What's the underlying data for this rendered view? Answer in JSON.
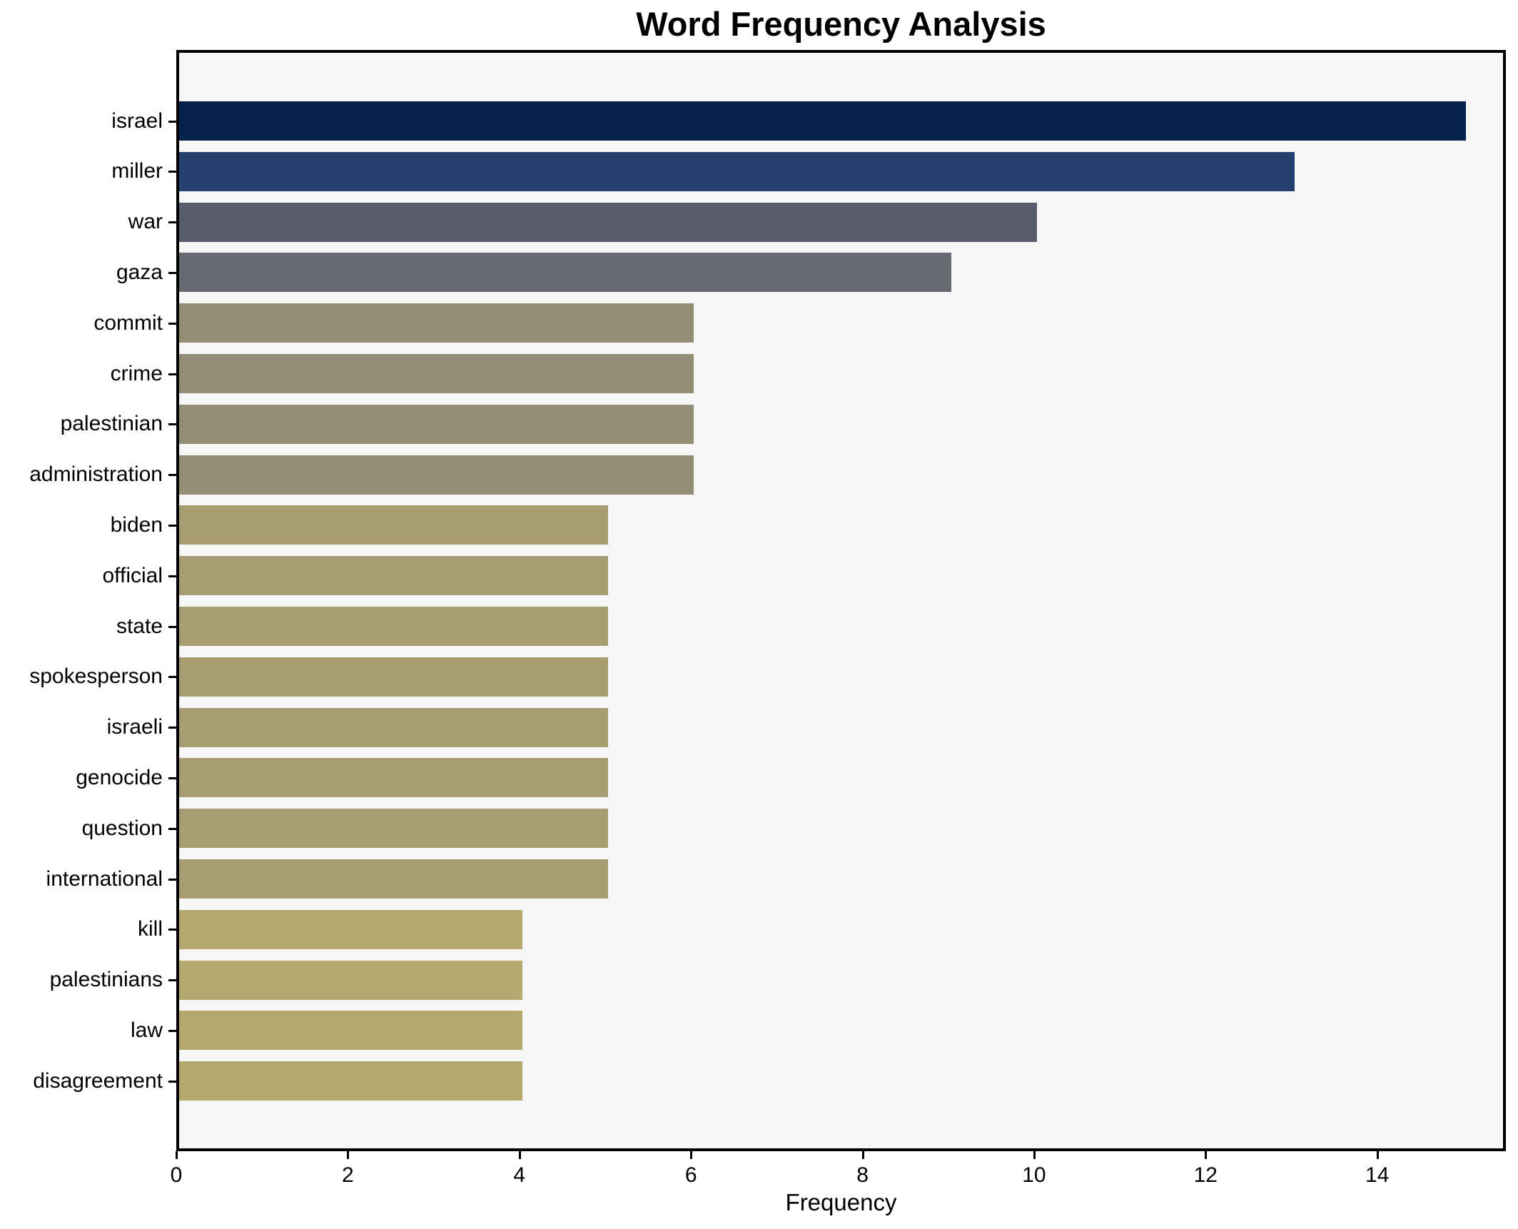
{
  "chart_data": {
    "type": "bar",
    "orientation": "horizontal",
    "title": "Word Frequency Analysis",
    "xlabel": "Frequency",
    "ylabel": "",
    "categories": [
      "israel",
      "miller",
      "war",
      "gaza",
      "commit",
      "crime",
      "palestinian",
      "administration",
      "biden",
      "official",
      "state",
      "spokesperson",
      "israeli",
      "genocide",
      "question",
      "international",
      "kill",
      "palestinians",
      "law",
      "disagreement"
    ],
    "values": [
      15,
      13,
      10,
      9,
      6,
      6,
      6,
      6,
      5,
      5,
      5,
      5,
      5,
      5,
      5,
      5,
      4,
      4,
      4,
      4
    ],
    "bar_colors": [
      "#05224c",
      "#23406e",
      "#575d6d",
      "#676a71",
      "#948e76",
      "#948e76",
      "#948e76",
      "#948e76",
      "#a69d72",
      "#a69d72",
      "#a69d72",
      "#a69d72",
      "#a69d72",
      "#a69d72",
      "#a69d72",
      "#a69d72",
      "#b5a96e",
      "#b5a96e",
      "#b5a96e",
      "#b5a96e"
    ],
    "xlim": [
      0,
      15.5
    ],
    "xticks": [
      0,
      2,
      4,
      6,
      8,
      10,
      12,
      14
    ],
    "grid": false,
    "legend": "none",
    "plot_background": "#f6f6f7",
    "figure_background": "#ffffff",
    "spine_color": "#000000",
    "text_color": "#000000"
  }
}
